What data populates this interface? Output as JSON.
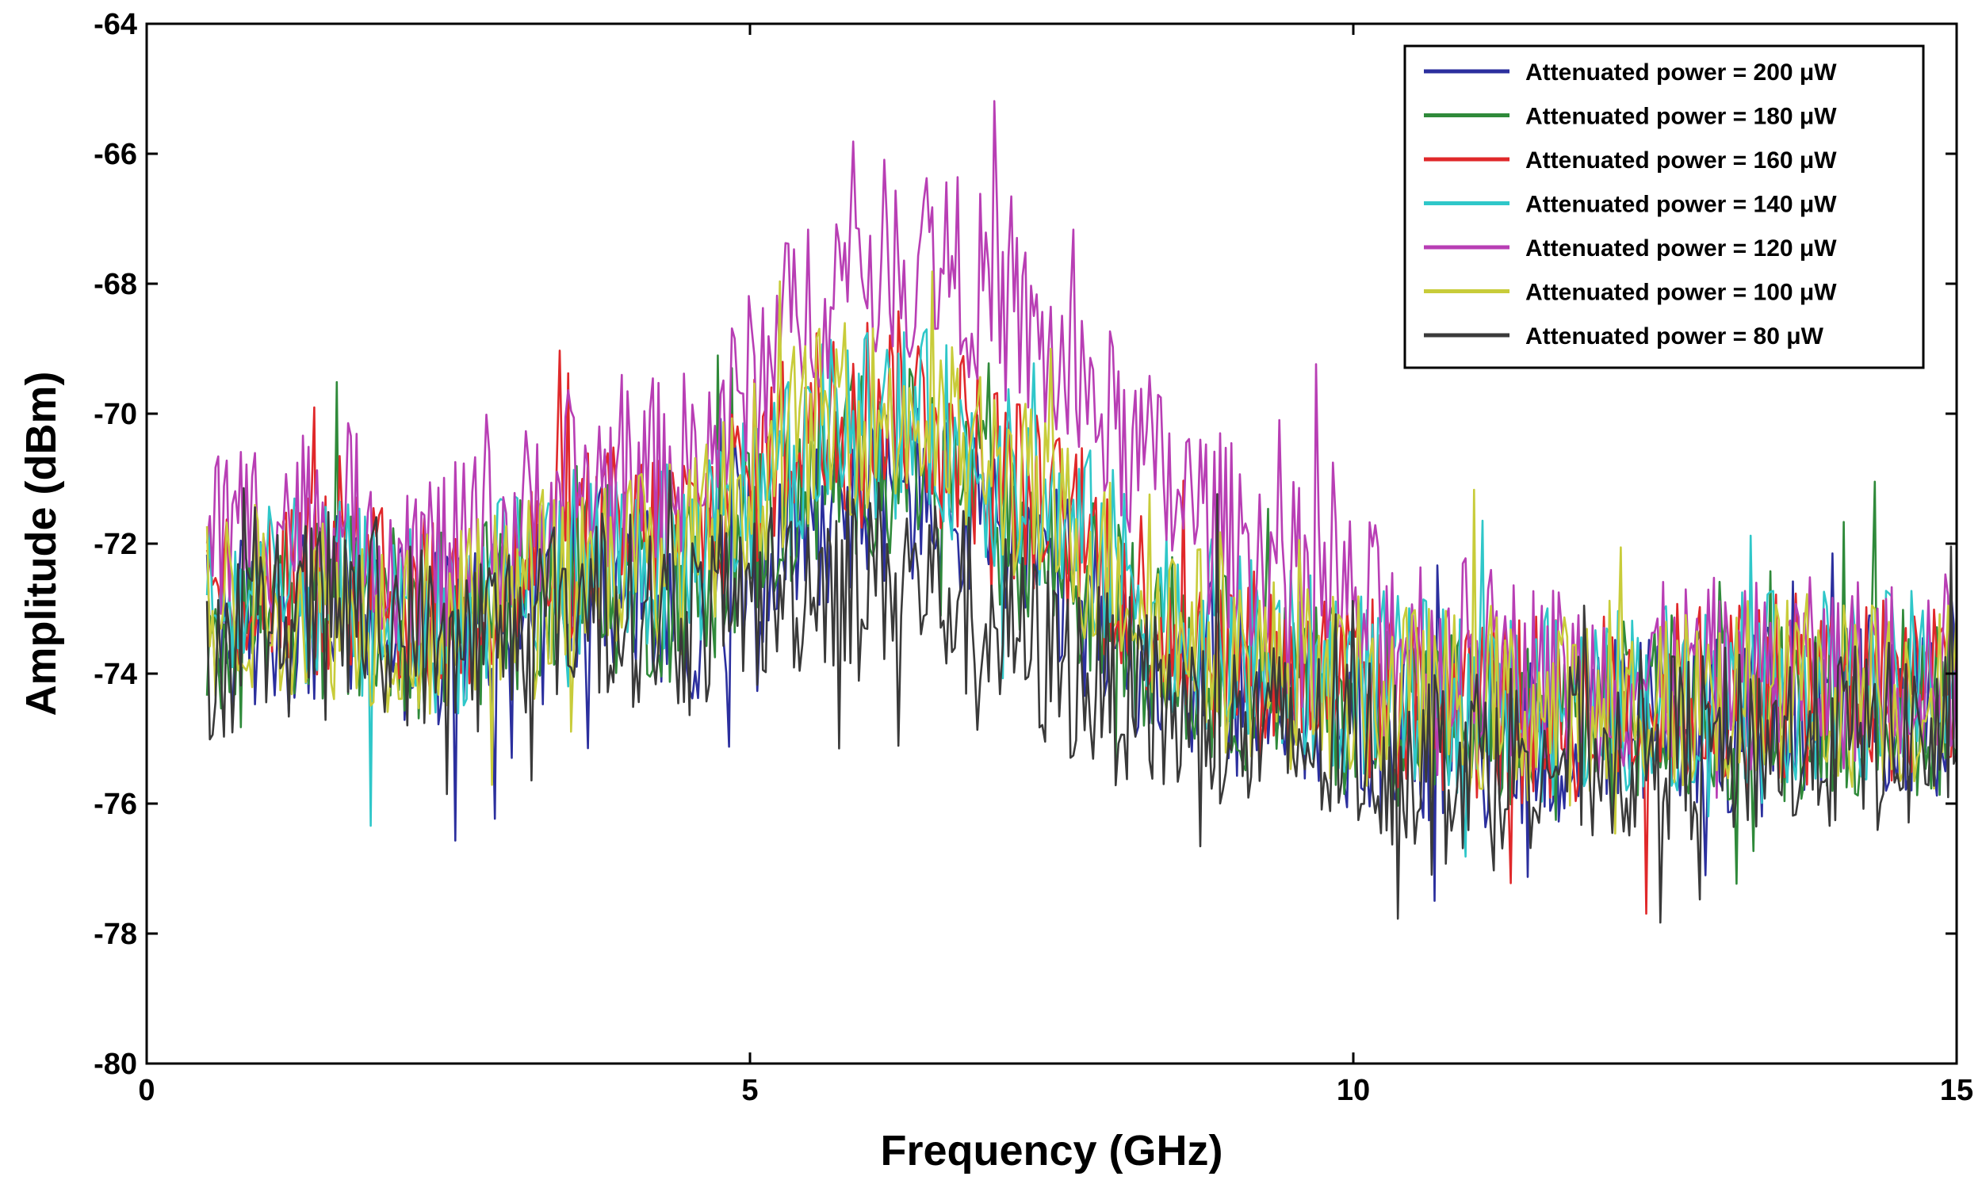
{
  "chart_data": {
    "type": "line",
    "title": "",
    "xlabel": "Frequency (GHz)",
    "ylabel": "Amplitude (dBm)",
    "xlim": [
      0,
      15
    ],
    "ylim": [
      -80,
      -64
    ],
    "xticks": [
      "0",
      "5",
      "10",
      "15"
    ],
    "yticks": [
      "-64",
      "-66",
      "-68",
      "-70",
      "-72",
      "-74",
      "-76",
      "-78",
      "-80"
    ],
    "grid": false,
    "legend_position": "top-right",
    "x": [
      0.5,
      1,
      1.5,
      2,
      2.5,
      3,
      3.5,
      4,
      4.5,
      5,
      5.5,
      6,
      6.5,
      7,
      7.5,
      8,
      8.5,
      9,
      9.5,
      10,
      10.5,
      11,
      11.5,
      12,
      12.5,
      13,
      13.5,
      14,
      14.5,
      15
    ],
    "series": [
      {
        "name": "Attenuated power = 200 μW",
        "color": "#2b2f9e",
        "values": [
          -73.5,
          -73.2,
          -73.0,
          -73.2,
          -73.5,
          -73.0,
          -72.6,
          -72.8,
          -73.0,
          -72.2,
          -71.5,
          -71.2,
          -71.3,
          -72.0,
          -72.6,
          -73.3,
          -73.8,
          -74.2,
          -74.3,
          -74.6,
          -74.8,
          -74.9,
          -75.0,
          -74.9,
          -74.8,
          -74.7,
          -74.7,
          -74.6,
          -74.6,
          -74.6
        ]
      },
      {
        "name": "Attenuated power = 180 μW",
        "color": "#2f8a3a",
        "values": [
          -73.2,
          -73.0,
          -72.9,
          -73.1,
          -73.3,
          -72.9,
          -72.5,
          -72.6,
          -72.7,
          -71.8,
          -71.0,
          -70.7,
          -70.8,
          -71.5,
          -72.2,
          -73.0,
          -73.6,
          -74.0,
          -74.2,
          -74.4,
          -74.6,
          -74.7,
          -74.8,
          -74.7,
          -74.6,
          -74.5,
          -74.5,
          -74.4,
          -74.4,
          -74.4
        ]
      },
      {
        "name": "Attenuated power = 160 μW",
        "color": "#e0282a",
        "values": [
          -72.8,
          -72.6,
          -72.6,
          -72.9,
          -73.0,
          -72.6,
          -72.0,
          -71.9,
          -71.8,
          -71.0,
          -70.0,
          -69.8,
          -70.0,
          -70.8,
          -71.6,
          -72.4,
          -73.2,
          -73.7,
          -74.0,
          -74.2,
          -74.4,
          -74.5,
          -74.6,
          -74.5,
          -74.4,
          -74.3,
          -74.3,
          -74.2,
          -74.2,
          -74.2
        ]
      },
      {
        "name": "Attenuated power = 140 μW",
        "color": "#2fc7c9",
        "values": [
          -73.0,
          -72.8,
          -72.8,
          -73.0,
          -73.2,
          -72.7,
          -72.2,
          -72.2,
          -72.3,
          -71.3,
          -70.4,
          -70.1,
          -70.2,
          -70.9,
          -71.5,
          -72.3,
          -73.1,
          -73.6,
          -73.9,
          -74.1,
          -74.3,
          -74.4,
          -74.5,
          -74.4,
          -74.3,
          -74.3,
          -74.2,
          -74.2,
          -74.2,
          -74.2
        ]
      },
      {
        "name": "Attenuated power = 120 μW",
        "color": "#b83eb4",
        "values": [
          -72.0,
          -71.6,
          -71.6,
          -72.0,
          -72.3,
          -71.8,
          -71.2,
          -71.0,
          -70.8,
          -69.6,
          -68.2,
          -67.6,
          -67.5,
          -68.2,
          -69.2,
          -70.2,
          -71.2,
          -71.9,
          -72.5,
          -73.0,
          -73.4,
          -73.7,
          -74.0,
          -74.1,
          -74.1,
          -74.0,
          -74.0,
          -74.0,
          -73.9,
          -73.9
        ]
      },
      {
        "name": "Attenuated power = 100 μW",
        "color": "#c8cc3a",
        "values": [
          -73.0,
          -72.8,
          -72.9,
          -73.1,
          -73.3,
          -72.9,
          -72.3,
          -72.2,
          -72.2,
          -71.0,
          -70.2,
          -70.0,
          -70.2,
          -70.8,
          -71.6,
          -72.4,
          -73.2,
          -73.8,
          -74.0,
          -74.3,
          -74.4,
          -74.5,
          -74.6,
          -74.5,
          -74.4,
          -74.4,
          -74.3,
          -74.3,
          -74.3,
          -74.3
        ]
      },
      {
        "name": "Attenuated power = 80 μW",
        "color": "#3a3a3a",
        "values": [
          -73.6,
          -73.3,
          -73.0,
          -73.2,
          -73.6,
          -73.3,
          -72.9,
          -73.0,
          -73.2,
          -72.9,
          -72.5,
          -72.4,
          -72.6,
          -73.2,
          -73.8,
          -74.2,
          -74.6,
          -74.9,
          -75.0,
          -75.1,
          -75.2,
          -75.2,
          -75.2,
          -75.2,
          -75.1,
          -75.1,
          -75.0,
          -75.0,
          -75.0,
          -75.0
        ]
      }
    ]
  }
}
